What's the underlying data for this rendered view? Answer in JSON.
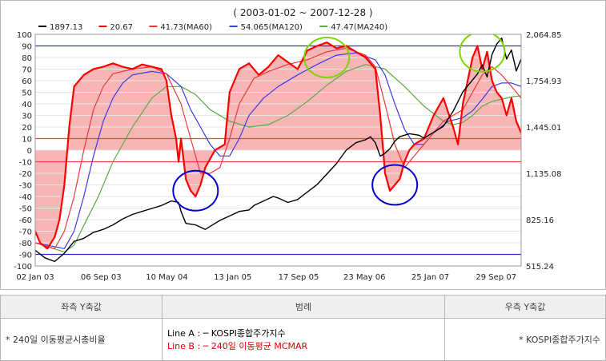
{
  "chart_data": {
    "type": "line",
    "title": "( 2003-01-02 ~ 2007-12-28 )",
    "legend": [
      {
        "label": "1897.13",
        "color": "#000000"
      },
      {
        "label": "20.67",
        "color": "#ff0000"
      },
      {
        "label": "41.73(MA60)",
        "color": "#e83a3a"
      },
      {
        "label": "54.065(MA120)",
        "color": "#3a3ae8"
      },
      {
        "label": "47.47(MA240)",
        "color": "#5aaa46"
      }
    ],
    "x_tick_labels": [
      "02 Jan 03",
      "06 Sep 03",
      "10 May 04",
      "13 Jan 05",
      "17 Sep 05",
      "23 May 06",
      "25 Jan 07",
      "29 Sep 07"
    ],
    "y_left": {
      "ticks": [
        100,
        90,
        80,
        70,
        60,
        50,
        40,
        30,
        20,
        10,
        0,
        -10,
        -20,
        -30,
        -40,
        -50,
        -60,
        -70,
        -80,
        -90,
        -100
      ],
      "ylim": [
        -100,
        100
      ]
    },
    "y_right": {
      "ticks": [
        "2,064.85",
        "1,754.93",
        "1,445.01",
        "1,135.08",
        "825.16",
        "515.24"
      ],
      "ylim": [
        515.24,
        2064.85
      ]
    },
    "reference_lines": [
      {
        "y": 90,
        "color": "#3030c8"
      },
      {
        "y": -90,
        "color": "#3030c8"
      },
      {
        "y": 10,
        "color": "#ff4040"
      },
      {
        "y": -10,
        "color": "#ff4040"
      }
    ],
    "series": [
      {
        "name": "1897.13",
        "axis": "right",
        "color": "#000000",
        "points": [
          [
            0,
            620
          ],
          [
            0.02,
            570
          ],
          [
            0.04,
            545
          ],
          [
            0.06,
            600
          ],
          [
            0.08,
            680
          ],
          [
            0.1,
            700
          ],
          [
            0.12,
            740
          ],
          [
            0.14,
            760
          ],
          [
            0.16,
            790
          ],
          [
            0.18,
            830
          ],
          [
            0.2,
            860
          ],
          [
            0.22,
            880
          ],
          [
            0.24,
            900
          ],
          [
            0.26,
            920
          ],
          [
            0.28,
            950
          ],
          [
            0.295,
            940
          ],
          [
            0.3,
            880
          ],
          [
            0.31,
            800
          ],
          [
            0.33,
            790
          ],
          [
            0.35,
            760
          ],
          [
            0.37,
            800
          ],
          [
            0.38,
            820
          ],
          [
            0.4,
            850
          ],
          [
            0.42,
            880
          ],
          [
            0.44,
            890
          ],
          [
            0.45,
            920
          ],
          [
            0.47,
            950
          ],
          [
            0.49,
            980
          ],
          [
            0.5,
            970
          ],
          [
            0.52,
            940
          ],
          [
            0.54,
            960
          ],
          [
            0.56,
            1010
          ],
          [
            0.58,
            1060
          ],
          [
            0.6,
            1130
          ],
          [
            0.62,
            1200
          ],
          [
            0.64,
            1290
          ],
          [
            0.66,
            1340
          ],
          [
            0.68,
            1360
          ],
          [
            0.69,
            1380
          ],
          [
            0.7,
            1340
          ],
          [
            0.71,
            1250
          ],
          [
            0.72,
            1270
          ],
          [
            0.73,
            1300
          ],
          [
            0.74,
            1350
          ],
          [
            0.75,
            1380
          ],
          [
            0.77,
            1400
          ],
          [
            0.79,
            1390
          ],
          [
            0.8,
            1370
          ],
          [
            0.82,
            1410
          ],
          [
            0.84,
            1450
          ],
          [
            0.86,
            1550
          ],
          [
            0.88,
            1680
          ],
          [
            0.9,
            1760
          ],
          [
            0.91,
            1800
          ],
          [
            0.92,
            1860
          ],
          [
            0.93,
            1780
          ],
          [
            0.94,
            1930
          ],
          [
            0.95,
            2000
          ],
          [
            0.96,
            2040
          ],
          [
            0.97,
            1900
          ],
          [
            0.98,
            1960
          ],
          [
            0.99,
            1820
          ],
          [
            1.0,
            1900
          ]
        ]
      },
      {
        "name": "20.67",
        "axis": "left",
        "color": "#ff0000",
        "points": [
          [
            0,
            -70
          ],
          [
            0.01,
            -80
          ],
          [
            0.025,
            -85
          ],
          [
            0.04,
            -75
          ],
          [
            0.05,
            -60
          ],
          [
            0.06,
            -30
          ],
          [
            0.07,
            20
          ],
          [
            0.08,
            55
          ],
          [
            0.1,
            65
          ],
          [
            0.12,
            70
          ],
          [
            0.14,
            72
          ],
          [
            0.16,
            75
          ],
          [
            0.18,
            72
          ],
          [
            0.2,
            70
          ],
          [
            0.22,
            74
          ],
          [
            0.24,
            72
          ],
          [
            0.26,
            70
          ],
          [
            0.27,
            60
          ],
          [
            0.28,
            30
          ],
          [
            0.29,
            10
          ],
          [
            0.295,
            -10
          ],
          [
            0.3,
            10
          ],
          [
            0.31,
            -25
          ],
          [
            0.32,
            -35
          ],
          [
            0.33,
            -40
          ],
          [
            0.34,
            -30
          ],
          [
            0.35,
            -15
          ],
          [
            0.37,
            0
          ],
          [
            0.39,
            5
          ],
          [
            0.4,
            50
          ],
          [
            0.42,
            70
          ],
          [
            0.44,
            75
          ],
          [
            0.46,
            65
          ],
          [
            0.48,
            72
          ],
          [
            0.5,
            82
          ],
          [
            0.52,
            76
          ],
          [
            0.54,
            70
          ],
          [
            0.56,
            86
          ],
          [
            0.58,
            90
          ],
          [
            0.6,
            93
          ],
          [
            0.62,
            88
          ],
          [
            0.64,
            90
          ],
          [
            0.66,
            85
          ],
          [
            0.68,
            80
          ],
          [
            0.7,
            70
          ],
          [
            0.71,
            30
          ],
          [
            0.72,
            -20
          ],
          [
            0.73,
            -35
          ],
          [
            0.74,
            -30
          ],
          [
            0.75,
            -25
          ],
          [
            0.76,
            -10
          ],
          [
            0.77,
            0
          ],
          [
            0.78,
            5
          ],
          [
            0.8,
            10
          ],
          [
            0.82,
            30
          ],
          [
            0.84,
            45
          ],
          [
            0.86,
            20
          ],
          [
            0.87,
            5
          ],
          [
            0.88,
            40
          ],
          [
            0.89,
            60
          ],
          [
            0.9,
            80
          ],
          [
            0.91,
            90
          ],
          [
            0.92,
            70
          ],
          [
            0.93,
            85
          ],
          [
            0.94,
            60
          ],
          [
            0.95,
            50
          ],
          [
            0.96,
            45
          ],
          [
            0.97,
            30
          ],
          [
            0.98,
            45
          ],
          [
            0.99,
            25
          ],
          [
            1.0,
            15
          ]
        ]
      },
      {
        "name": "41.73(MA60)",
        "axis": "left",
        "color": "#e83a3a",
        "points": [
          [
            0,
            -80
          ],
          [
            0.04,
            -85
          ],
          [
            0.06,
            -70
          ],
          [
            0.08,
            -40
          ],
          [
            0.1,
            0
          ],
          [
            0.12,
            35
          ],
          [
            0.14,
            55
          ],
          [
            0.16,
            66
          ],
          [
            0.2,
            70
          ],
          [
            0.24,
            72
          ],
          [
            0.27,
            66
          ],
          [
            0.3,
            40
          ],
          [
            0.32,
            10
          ],
          [
            0.34,
            -20
          ],
          [
            0.36,
            -20
          ],
          [
            0.38,
            -15
          ],
          [
            0.4,
            10
          ],
          [
            0.42,
            40
          ],
          [
            0.45,
            62
          ],
          [
            0.48,
            68
          ],
          [
            0.52,
            74
          ],
          [
            0.56,
            78
          ],
          [
            0.6,
            85
          ],
          [
            0.64,
            88
          ],
          [
            0.68,
            82
          ],
          [
            0.7,
            72
          ],
          [
            0.72,
            40
          ],
          [
            0.74,
            5
          ],
          [
            0.76,
            -15
          ],
          [
            0.78,
            -5
          ],
          [
            0.8,
            5
          ],
          [
            0.84,
            25
          ],
          [
            0.86,
            30
          ],
          [
            0.88,
            35
          ],
          [
            0.9,
            50
          ],
          [
            0.92,
            65
          ],
          [
            0.94,
            72
          ],
          [
            0.96,
            65
          ],
          [
            0.98,
            55
          ],
          [
            1.0,
            45
          ]
        ]
      },
      {
        "name": "54.065(MA120)",
        "axis": "left",
        "color": "#3a3ae8",
        "points": [
          [
            0,
            -80
          ],
          [
            0.06,
            -85
          ],
          [
            0.08,
            -70
          ],
          [
            0.1,
            -40
          ],
          [
            0.12,
            -5
          ],
          [
            0.14,
            25
          ],
          [
            0.16,
            45
          ],
          [
            0.18,
            58
          ],
          [
            0.2,
            65
          ],
          [
            0.24,
            68
          ],
          [
            0.27,
            66
          ],
          [
            0.3,
            55
          ],
          [
            0.32,
            35
          ],
          [
            0.34,
            20
          ],
          [
            0.36,
            5
          ],
          [
            0.38,
            -5
          ],
          [
            0.4,
            -5
          ],
          [
            0.42,
            10
          ],
          [
            0.44,
            30
          ],
          [
            0.47,
            45
          ],
          [
            0.5,
            55
          ],
          [
            0.54,
            65
          ],
          [
            0.58,
            74
          ],
          [
            0.62,
            82
          ],
          [
            0.66,
            84
          ],
          [
            0.7,
            78
          ],
          [
            0.72,
            65
          ],
          [
            0.74,
            40
          ],
          [
            0.76,
            18
          ],
          [
            0.78,
            5
          ],
          [
            0.8,
            5
          ],
          [
            0.82,
            15
          ],
          [
            0.85,
            25
          ],
          [
            0.88,
            28
          ],
          [
            0.9,
            34
          ],
          [
            0.92,
            44
          ],
          [
            0.94,
            55
          ],
          [
            0.96,
            58
          ],
          [
            0.98,
            58
          ],
          [
            1.0,
            55
          ]
        ]
      },
      {
        "name": "47.47(MA240)",
        "axis": "left",
        "color": "#5aaa46",
        "points": [
          [
            0,
            -80
          ],
          [
            0.06,
            -88
          ],
          [
            0.08,
            -82
          ],
          [
            0.1,
            -65
          ],
          [
            0.13,
            -40
          ],
          [
            0.16,
            -10
          ],
          [
            0.2,
            20
          ],
          [
            0.24,
            45
          ],
          [
            0.27,
            55
          ],
          [
            0.3,
            55
          ],
          [
            0.33,
            48
          ],
          [
            0.36,
            35
          ],
          [
            0.4,
            25
          ],
          [
            0.44,
            20
          ],
          [
            0.48,
            22
          ],
          [
            0.52,
            30
          ],
          [
            0.56,
            42
          ],
          [
            0.6,
            56
          ],
          [
            0.64,
            68
          ],
          [
            0.68,
            74
          ],
          [
            0.72,
            70
          ],
          [
            0.76,
            55
          ],
          [
            0.8,
            38
          ],
          [
            0.84,
            25
          ],
          [
            0.86,
            22
          ],
          [
            0.88,
            24
          ],
          [
            0.9,
            30
          ],
          [
            0.92,
            38
          ],
          [
            0.94,
            42
          ],
          [
            0.96,
            44
          ],
          [
            0.98,
            46
          ],
          [
            1.0,
            47
          ]
        ]
      }
    ],
    "annotations": [
      {
        "shape": "ellipse",
        "color": "#0000d0",
        "cx": 0.33,
        "cy": -35
      },
      {
        "shape": "ellipse",
        "color": "#0000d0",
        "cx": 0.74,
        "cy": -30
      },
      {
        "shape": "ellipse",
        "color": "#7fd400",
        "cx": 0.6,
        "cy": 80
      },
      {
        "shape": "ellipse",
        "color": "#7fd400",
        "cx": 0.92,
        "cy": 85
      }
    ]
  },
  "legend_table": {
    "headers": [
      "좌측 Y축값",
      "범례",
      "우측 Y축값"
    ],
    "left_value": "* 240일 이동평균시총비율",
    "line_a": "Line A : ─ KOSPI종합주가지수",
    "line_b": "Line B : ─ 240일 이동평균 MCMAR",
    "right_value": "* KOSPI종합주가지수"
  }
}
